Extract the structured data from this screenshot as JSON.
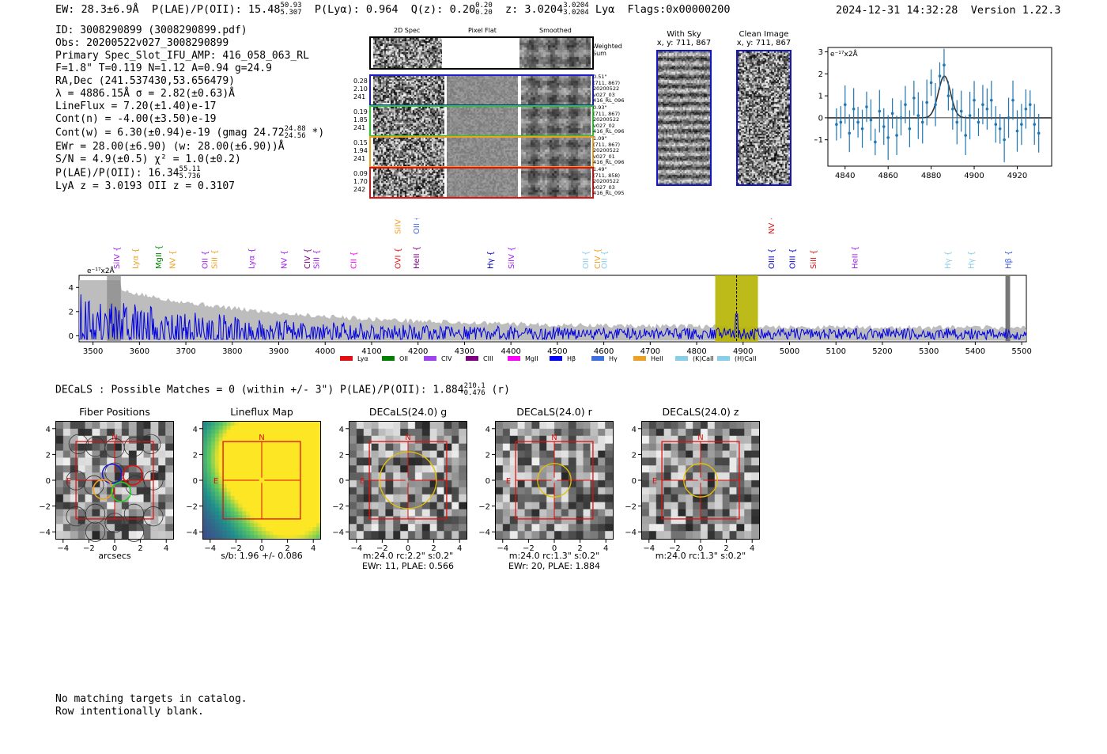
{
  "header": {
    "ew": "EW: 28.3±6.9Å",
    "plae_label": "P(LAE)/P(OII): 15.48",
    "plae_hi": "50.93",
    "plae_lo": "5.307",
    "plya": "P(Lyα): 0.964",
    "qz_label": "Q(z): 0.20",
    "qz_hi": "0.20",
    "qz_lo": "0.20",
    "z_label": "z: 3.0204",
    "z_hi": "3.0204",
    "z_lo": "3.0204",
    "z_line": "Lyα",
    "flags": "Flags:0x00000200",
    "datetime": "2024-12-31 14:32:28",
    "version": "Version 1.22.3"
  },
  "info": {
    "id": "ID: 3008290899 (3008290899.pdf)",
    "obs": "Obs: 20200522v027_3008290899",
    "slot": "Primary Spec_Slot_IFU_AMP: 416_058_063_RL",
    "params": "F=1.8\"  T=0.119  N=1.12  A=0.94  g=24.9",
    "radec": "RA,Dec (241.537430,53.656479)",
    "lambda": "λ = 4886.15Å  σ = 2.82(±0.63)Å",
    "lineflux": "LineFlux = 7.20(±1.40)e-17",
    "contn": "Cont(n) = -4.00(±3.50)e-19",
    "contw": "Cont(w) = 6.30(±0.94)e-19 (gmag 24.72",
    "contw_hi": "24.88",
    "contw_lo": "24.56",
    "contw_end": "*)",
    "ewr": "EWr = 28.00(±6.90) (w: 28.00(±6.90))Å",
    "sn": "S/N = 4.9(±0.5)  χ² = 1.0(±0.2)",
    "plae": "P(LAE)/P(OII): 16.34",
    "plae_hi": "55.11",
    "plae_lo": "5.736",
    "lyaz": "LyA z = 3.0193  OII z = 0.3107"
  },
  "cutouts": {
    "col_titles": [
      "2D Spec",
      "Pixel Flat",
      "Smoothed"
    ],
    "weighted_sum": "Weighted Sum",
    "rows": [
      {
        "left": [
          "0.28",
          "2.10",
          "241"
        ],
        "right": [
          "0.51\"",
          "(711, 867)",
          "20200522",
          "v027_03",
          "416_RL_096"
        ],
        "color": "#1a1ad0"
      },
      {
        "left": [
          "0.19",
          "1.85",
          "241"
        ],
        "right": [
          "0.93\"",
          "(711, 867)",
          "20200522",
          "v027_02",
          "416_RL_096"
        ],
        "color": "#22cc22"
      },
      {
        "left": [
          "0.15",
          "1.94",
          "241"
        ],
        "right": [
          "1.09\"",
          "(711, 867)",
          "20200522",
          "v027_01",
          "416_RL_096"
        ],
        "color": "#f0a020"
      },
      {
        "left": [
          "0.09",
          "1.70",
          "242"
        ],
        "right": [
          "1.49\"",
          "(711, 858)",
          "20200522",
          "v027_03",
          "416_RL_095"
        ],
        "color": "#e01010"
      }
    ]
  },
  "with_sky": {
    "title": "With Sky",
    "coords": "x, y: 711, 867"
  },
  "clean_image": {
    "title": "Clean Image",
    "coords": "x, y: 711, 867"
  },
  "zoom_spec": {
    "units": "e⁻¹⁷x2Å"
  },
  "full_spec": {
    "units": "e⁻¹⁷x2Å"
  },
  "decals": {
    "header": "DECaLS : Possible Matches = 0 (within +/- 3\")  P(LAE)/P(OII): 1.884",
    "hi": "210.1",
    "lo": "0.476",
    "band": "(r)"
  },
  "panels": [
    {
      "title": "Fiber Positions",
      "caption1": "arcsecs",
      "caption2": ""
    },
    {
      "title": "Lineflux Map",
      "caption1": "s/b: 1.96 +/- 0.086",
      "caption2": ""
    },
    {
      "title": "DECaLS(24.0) g",
      "caption1": "m:24.0 rc:2.2\"  s:0.2\"",
      "caption2": "EWr: 11, PLAE: 0.566"
    },
    {
      "title": "DECaLS(24.0) r",
      "caption1": "m:24.0 rc:1.3\"  s:0.2\"",
      "caption2": "EWr: 20, PLAE: 1.884"
    },
    {
      "title": "DECaLS(24.0) z",
      "caption1": "m:24.0 rc:1.3\"  s:0.2\"",
      "caption2": ""
    }
  ],
  "footer": {
    "line1": "No matching targets in catalog.",
    "line2": "Row intentionally blank."
  },
  "chart_data": [
    {
      "type": "line",
      "title": "",
      "ylabel": "e⁻¹⁷x2Å",
      "xlim": [
        4832,
        4936
      ],
      "ylim": [
        -2.2,
        3.2
      ],
      "xticks": [
        4840,
        4860,
        4880,
        4900,
        4920
      ],
      "yticks": [
        -1,
        0,
        1,
        2,
        3
      ],
      "data_points": {
        "x": [
          4836,
          4838,
          4840,
          4842,
          4844,
          4846,
          4848,
          4850,
          4852,
          4854,
          4856,
          4858,
          4860,
          4862,
          4864,
          4866,
          4868,
          4870,
          4872,
          4874,
          4876,
          4878,
          4880,
          4882,
          4884,
          4886,
          4888,
          4890,
          4892,
          4894,
          4896,
          4898,
          4900,
          4902,
          4904,
          4906,
          4908,
          4910,
          4912,
          4914,
          4916,
          4918,
          4920,
          4922,
          4924,
          4926,
          4928,
          4930
        ],
        "y": [
          -0.3,
          -0.2,
          0.6,
          -0.7,
          0.4,
          -0.2,
          -0.5,
          0.5,
          -0.1,
          -1.1,
          0.3,
          -0.4,
          -0.9,
          0.2,
          -0.8,
          0.0,
          0.6,
          -0.5,
          0.9,
          0.1,
          -0.2,
          0.7,
          1.6,
          0.6,
          1.9,
          2.4,
          1.0,
          0.4,
          -0.2,
          0.3,
          -0.8,
          0.1,
          0.8,
          -0.2,
          0.6,
          0.4,
          0.8,
          -0.3,
          -0.5,
          -1.0,
          0.0,
          0.8,
          -0.6,
          -0.3,
          0.4,
          0.6,
          -0.3,
          -0.7
        ]
      },
      "fit_model": {
        "type": "gaussian",
        "center": 4886.15,
        "sigma": 2.82,
        "amplitude": 1.9,
        "baseline": 0.0
      }
    },
    {
      "type": "line",
      "title": "",
      "ylabel": "e⁻¹⁷x2Å",
      "xlim": [
        3470,
        5510
      ],
      "ylim": [
        -0.5,
        5.0
      ],
      "xticks": [
        3500,
        3600,
        3700,
        3800,
        3900,
        4000,
        4100,
        4200,
        4300,
        4400,
        4500,
        4600,
        4700,
        4800,
        4900,
        5000,
        5100,
        5200,
        5300,
        5400,
        5500
      ],
      "yticks": [
        0,
        2,
        4
      ],
      "highlight_range": [
        4840,
        4932
      ],
      "highlight_line": 4886,
      "line_markers": [
        {
          "label": "SiIV",
          "x": 3550,
          "color": "#a020f0"
        },
        {
          "label": "Lyα",
          "x": 3590,
          "color": "#f0a020"
        },
        {
          "label": "MgII",
          "x": 3640,
          "color": "#008000"
        },
        {
          "label": "NV",
          "x": 3670,
          "color": "#f0a020"
        },
        {
          "label": "OII",
          "x": 3740,
          "color": "#a020f0"
        },
        {
          "label": "SiII",
          "x": 3760,
          "color": "#f0a020"
        },
        {
          "label": "Lyα",
          "x": 3840,
          "color": "#a020f0"
        },
        {
          "label": "NV",
          "x": 3910,
          "color": "#a020f0"
        },
        {
          "label": "CIV",
          "x": 3960,
          "color": "#800080"
        },
        {
          "label": "SiII",
          "x": 3980,
          "color": "#a020f0"
        },
        {
          "label": "CII",
          "x": 4060,
          "color": "#ff00ff"
        },
        {
          "label": "OVI",
          "x": 4155,
          "color": "#e01010"
        },
        {
          "label": "SiIV",
          "x": 4155,
          "color": "#f0a020"
        },
        {
          "label": "HeII",
          "x": 4195,
          "color": "#800080"
        },
        {
          "label": "OII",
          "x": 4195,
          "color": "#4060e0"
        },
        {
          "label": "Hγ",
          "x": 4355,
          "color": "#0000d0"
        },
        {
          "label": "SiIV",
          "x": 4400,
          "color": "#a020f0"
        },
        {
          "label": "OII",
          "x": 4560,
          "color": "#87ceeb"
        },
        {
          "label": "CIV",
          "x": 4585,
          "color": "#f0a020"
        },
        {
          "label": "OII",
          "x": 4600,
          "color": "#87ceeb"
        },
        {
          "label": "OIII",
          "x": 4960,
          "color": "#0000d0"
        },
        {
          "label": "NV",
          "x": 4960,
          "color": "#e01010"
        },
        {
          "label": "OIII",
          "x": 5005,
          "color": "#0000d0"
        },
        {
          "label": "SiII",
          "x": 5050,
          "color": "#e01010"
        },
        {
          "label": "HeII",
          "x": 5140,
          "color": "#a020f0"
        },
        {
          "label": "Hγ",
          "x": 5340,
          "color": "#87ceeb"
        },
        {
          "label": "Hγ",
          "x": 5390,
          "color": "#87ceeb"
        },
        {
          "label": "Hβ",
          "x": 5470,
          "color": "#4060e0"
        }
      ],
      "legend": [
        {
          "label": "Lyα",
          "color": "#e01010"
        },
        {
          "label": "OII",
          "color": "#008000"
        },
        {
          "label": "CIV",
          "color": "#a040f0"
        },
        {
          "label": "CIII",
          "color": "#800080"
        },
        {
          "label": "MgII",
          "color": "#ff00ff"
        },
        {
          "label": "Hβ",
          "color": "#0000ff"
        },
        {
          "label": "Hγ",
          "color": "#4070e0"
        },
        {
          "label": "HeII",
          "color": "#f0a020"
        },
        {
          "label": "(K)CaII",
          "color": "#87ceeb"
        },
        {
          "label": "(H)CaII",
          "color": "#87ceeb"
        }
      ]
    }
  ]
}
